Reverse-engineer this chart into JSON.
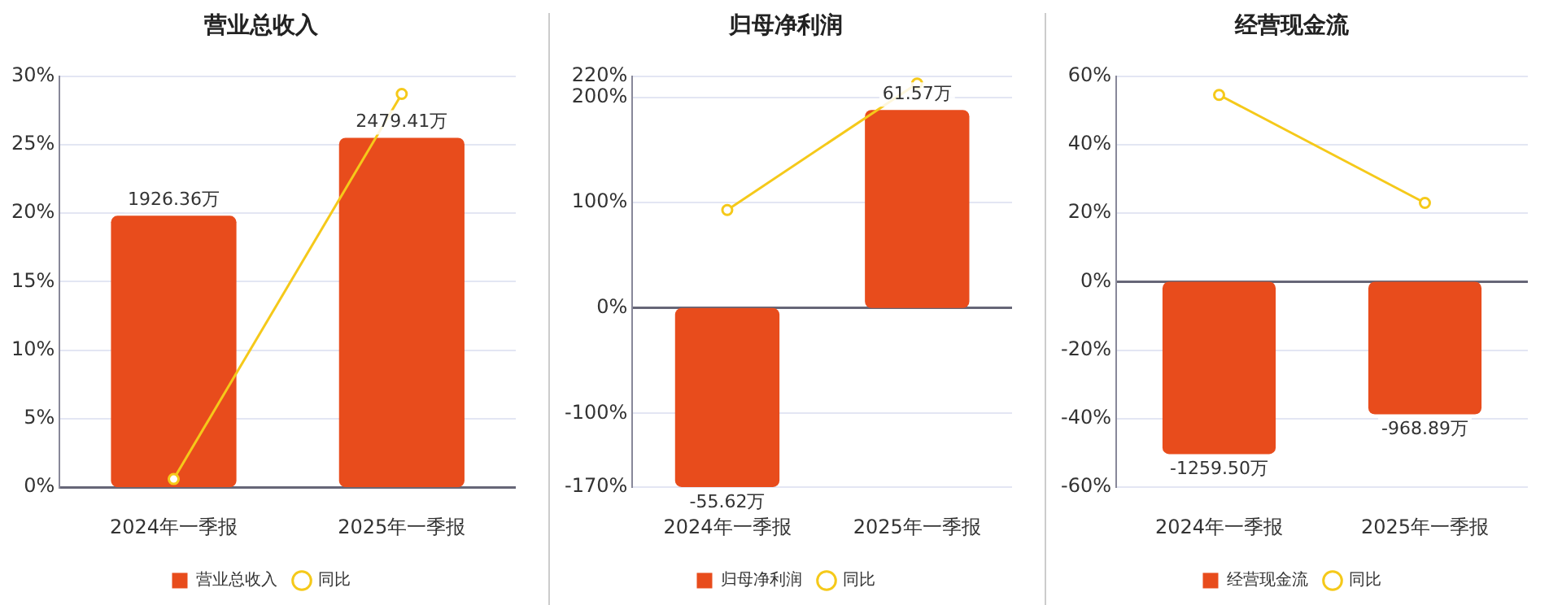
{
  "chart_data": [
    {
      "type": "bar",
      "title": "营业总收入",
      "categories": [
        "2024年一季报",
        "2025年一季报"
      ],
      "ylim": [
        0,
        30
      ],
      "yticks": [
        {
          "value": 0,
          "label": "0%"
        },
        {
          "value": 5,
          "label": "5%"
        },
        {
          "value": 10,
          "label": "10%"
        },
        {
          "value": 15,
          "label": "15%"
        },
        {
          "value": 20,
          "label": "20%"
        },
        {
          "value": 25,
          "label": "25%"
        },
        {
          "value": 30,
          "label": "30%"
        }
      ],
      "y2lim": [
        0,
        2917
      ],
      "grid": "y",
      "legend": "bottom",
      "series": [
        {
          "name": "营业总收入",
          "axis": "y2",
          "color": "#e84c1c",
          "values": [
            1926.36,
            2479.41
          ],
          "value_labels": [
            "1926.36万",
            "2479.41万"
          ]
        },
        {
          "name": "同比",
          "type": "line",
          "color": "#f5c91a",
          "marker": "circle",
          "values": [
            0.6,
            28.7
          ]
        }
      ]
    },
    {
      "type": "bar",
      "title": "归母净利润",
      "categories": [
        "2024年一季报",
        "2025年一季报"
      ],
      "ylim": [
        -170,
        220
      ],
      "yticks": [
        {
          "value": -170,
          "label": "-170%"
        },
        {
          "value": -100,
          "label": "-100%"
        },
        {
          "value": 0,
          "label": "0%"
        },
        {
          "value": 100,
          "label": "100%"
        },
        {
          "value": 200,
          "label": "200%"
        },
        {
          "value": 220,
          "label": "220%"
        }
      ],
      "y2lim": [
        -55.7,
        72.1
      ],
      "grid": "y",
      "legend": "bottom",
      "series": [
        {
          "name": "归母净利润",
          "axis": "y2",
          "color": "#e84c1c",
          "values": [
            -55.62,
            61.57
          ],
          "value_labels": [
            "-55.62万",
            "61.57万"
          ]
        },
        {
          "name": "同比",
          "type": "line",
          "color": "#f5c91a",
          "marker": "circle",
          "values": [
            93,
            213
          ]
        }
      ]
    },
    {
      "type": "bar",
      "title": "经营现金流",
      "categories": [
        "2024年一季报",
        "2025年一季报"
      ],
      "ylim": [
        -60,
        60
      ],
      "yticks": [
        {
          "value": -60,
          "label": "-60%"
        },
        {
          "value": -40,
          "label": "-40%"
        },
        {
          "value": -20,
          "label": "-20%"
        },
        {
          "value": 0,
          "label": "0%"
        },
        {
          "value": 20,
          "label": "20%"
        },
        {
          "value": 40,
          "label": "40%"
        },
        {
          "value": 60,
          "label": "60%"
        }
      ],
      "y2lim": [
        -1502,
        1502
      ],
      "grid": "y",
      "legend": "bottom",
      "series": [
        {
          "name": "经营现金流",
          "axis": "y2",
          "color": "#e84c1c",
          "values": [
            -1259.5,
            -968.89
          ],
          "value_labels": [
            "-1259.50万",
            "-968.89万"
          ]
        },
        {
          "name": "同比",
          "type": "line",
          "color": "#f5c91a",
          "marker": "circle",
          "values": [
            54.5,
            23
          ]
        }
      ]
    }
  ]
}
